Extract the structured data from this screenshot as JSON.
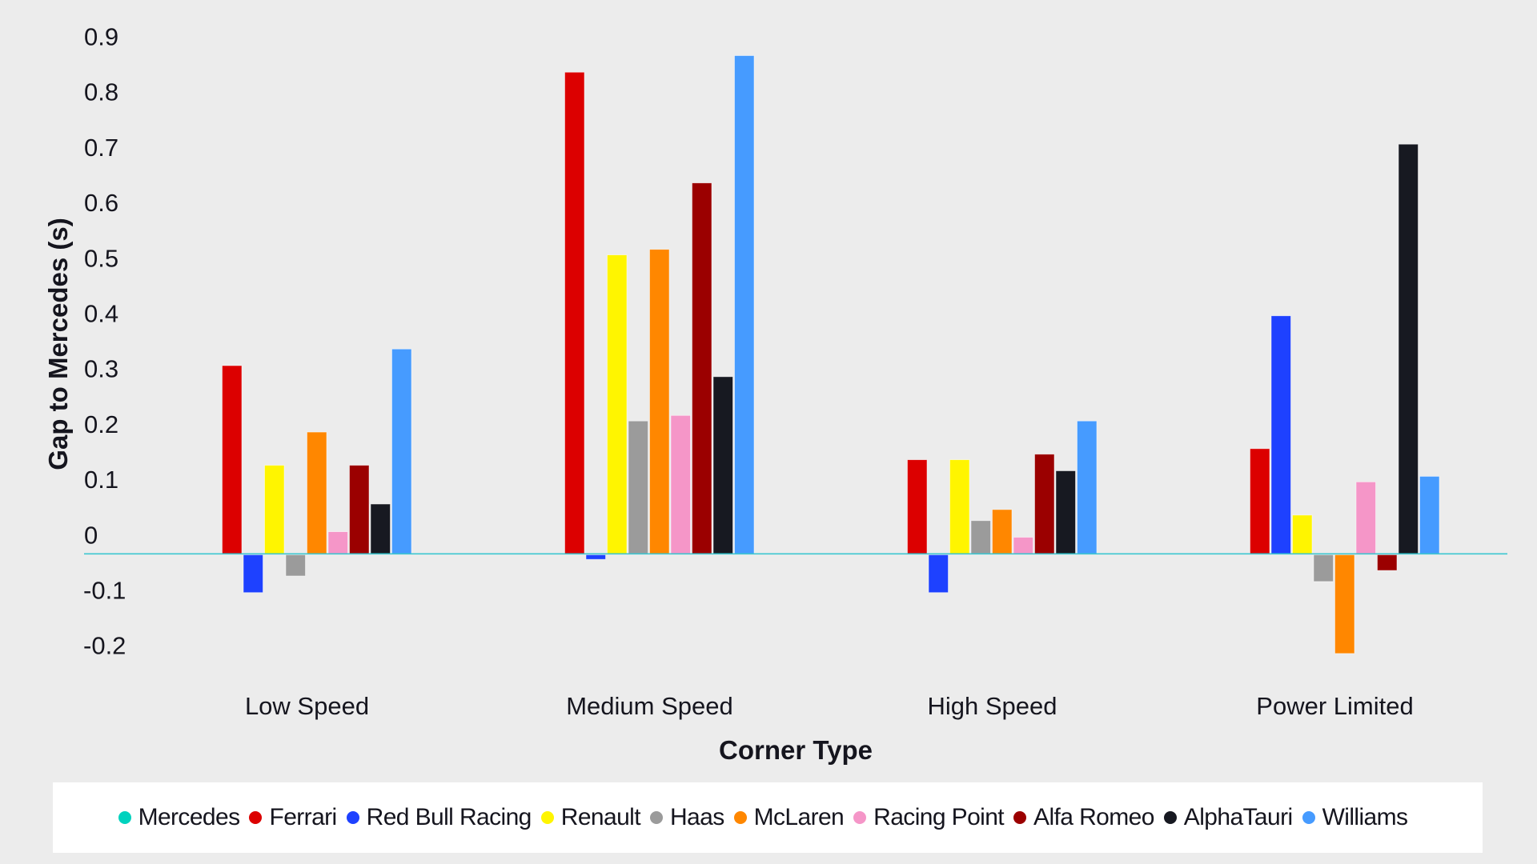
{
  "chart_data": {
    "type": "bar",
    "title": "",
    "xlabel": "Corner Type",
    "ylabel": "Gap to Mercedes (s)",
    "ylim": [
      -0.2,
      0.9
    ],
    "yticks": [
      0.9,
      0.8,
      0.7,
      0.6,
      0.5,
      0.4,
      0.3,
      0.2,
      0.1,
      0,
      -0.1,
      -0.2
    ],
    "ytick_labels": [
      "0.9",
      "0.8",
      "0.7",
      "0.6",
      "0.5",
      "0.4",
      "0.3",
      "0.2",
      "0.1",
      "0",
      "-0.1",
      "-0.2"
    ],
    "grid": false,
    "legend_position": "bottom",
    "categories": [
      "Low Speed",
      "Medium Speed",
      "High Speed",
      "Power Limited"
    ],
    "series": [
      {
        "name": "Mercedes",
        "color": "#00D2BE",
        "values": [
          0,
          0,
          0,
          0
        ]
      },
      {
        "name": "Ferrari",
        "color": "#DC0000",
        "values": [
          0.34,
          0.87,
          0.17,
          0.19
        ]
      },
      {
        "name": "Red Bull Racing",
        "color": "#1E41FF",
        "values": [
          -0.07,
          -0.01,
          -0.07,
          0.43
        ]
      },
      {
        "name": "Renault",
        "color": "#FFF500",
        "values": [
          0.16,
          0.54,
          0.17,
          0.07
        ]
      },
      {
        "name": "Haas",
        "color": "#9B9B9B",
        "values": [
          -0.04,
          0.24,
          0.06,
          -0.05
        ]
      },
      {
        "name": "McLaren",
        "color": "#FF8700",
        "values": [
          0.22,
          0.55,
          0.08,
          -0.18
        ]
      },
      {
        "name": "Racing Point",
        "color": "#F596C8",
        "values": [
          0.04,
          0.25,
          0.03,
          0.13
        ]
      },
      {
        "name": "Alfa Romeo",
        "color": "#9B0000",
        "values": [
          0.16,
          0.67,
          0.18,
          -0.03
        ]
      },
      {
        "name": "AlphaTauri",
        "color": "#171921",
        "values": [
          0.09,
          0.32,
          0.15,
          0.74
        ]
      },
      {
        "name": "Williams",
        "color": "#469BFF",
        "values": [
          0.37,
          0.9,
          0.24,
          0.14
        ]
      }
    ]
  },
  "colors": {
    "zero_line": "#3cc6d0",
    "text": "#15151e",
    "grid_cross": "#ececec"
  }
}
